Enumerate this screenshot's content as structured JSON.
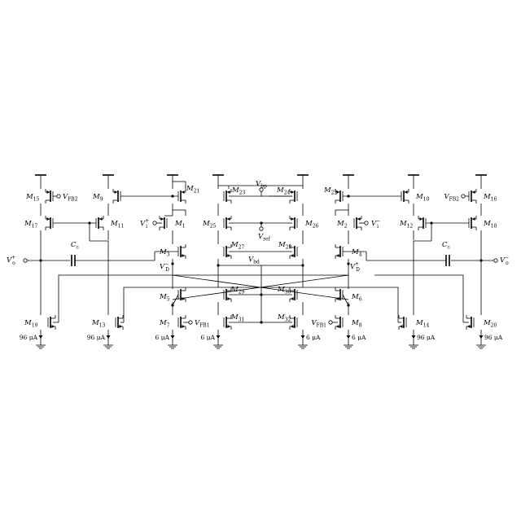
{
  "transistors": [
    {
      "id": "M15",
      "label": "M",
      "sub": "15"
    },
    {
      "id": "M9",
      "label": "M",
      "sub": "9"
    },
    {
      "id": "M21",
      "label": "M",
      "sub": "21"
    },
    {
      "id": "M23",
      "label": "M",
      "sub": "23"
    },
    {
      "id": "M24",
      "label": "M",
      "sub": "24"
    },
    {
      "id": "M22",
      "label": "M",
      "sub": "22"
    },
    {
      "id": "M10",
      "label": "M",
      "sub": "10"
    },
    {
      "id": "M16",
      "label": "M",
      "sub": "16"
    },
    {
      "id": "M17",
      "label": "M",
      "sub": "17"
    },
    {
      "id": "M11",
      "label": "M",
      "sub": "11"
    },
    {
      "id": "M1",
      "label": "M",
      "sub": "1"
    },
    {
      "id": "M25",
      "label": "M",
      "sub": "25"
    },
    {
      "id": "M26",
      "label": "M",
      "sub": "26"
    },
    {
      "id": "M2",
      "label": "M",
      "sub": "2"
    },
    {
      "id": "M12",
      "label": "M",
      "sub": "12"
    },
    {
      "id": "M18",
      "label": "M",
      "sub": "18"
    },
    {
      "id": "M3",
      "label": "M",
      "sub": "3"
    },
    {
      "id": "M27",
      "label": "M",
      "sub": "27"
    },
    {
      "id": "M28",
      "label": "M",
      "sub": "28"
    },
    {
      "id": "M4",
      "label": "M",
      "sub": "4"
    },
    {
      "id": "M5",
      "label": "M",
      "sub": "5"
    },
    {
      "id": "M29",
      "label": "M",
      "sub": "29"
    },
    {
      "id": "M30",
      "label": "M",
      "sub": "30"
    },
    {
      "id": "M6",
      "label": "M",
      "sub": "6"
    },
    {
      "id": "M7",
      "label": "M",
      "sub": "7"
    },
    {
      "id": "M31",
      "label": "M",
      "sub": "31"
    },
    {
      "id": "M32",
      "label": "M",
      "sub": "32"
    },
    {
      "id": "M8",
      "label": "M",
      "sub": "8"
    },
    {
      "id": "M19",
      "label": "M",
      "sub": "19"
    },
    {
      "id": "M13",
      "label": "M",
      "sub": "13"
    },
    {
      "id": "M14",
      "label": "M",
      "sub": "14"
    },
    {
      "id": "M20",
      "label": "M",
      "sub": "20"
    }
  ],
  "signals": {
    "vfb2": {
      "main": "V",
      "sub": "FB2"
    },
    "vfb1": {
      "main": "V",
      "sub": "FB1"
    },
    "vbp": {
      "main": "V",
      "sub": "bp"
    },
    "vref": {
      "main": "V",
      "sub": "ref"
    },
    "vbd": {
      "main": "V",
      "sub": "bd"
    },
    "vi_plus": {
      "main": "V",
      "sup": "+",
      "sub": "i"
    },
    "vi_minus": {
      "main": "V",
      "sup": "−",
      "sub": "i"
    },
    "vo_plus": {
      "main": "V",
      "sup": "+",
      "sub": "o"
    },
    "vo_minus": {
      "main": "V",
      "sup": "−",
      "sub": "o"
    },
    "vd_minus": {
      "main": "V",
      "sup": "−",
      "sub": "D"
    },
    "vd_plus": {
      "main": "V",
      "sup": "+",
      "sub": "D"
    },
    "cc": {
      "main": "C",
      "sub": "c"
    }
  },
  "currents": {
    "large": "96 μA",
    "small": "6 μA"
  }
}
